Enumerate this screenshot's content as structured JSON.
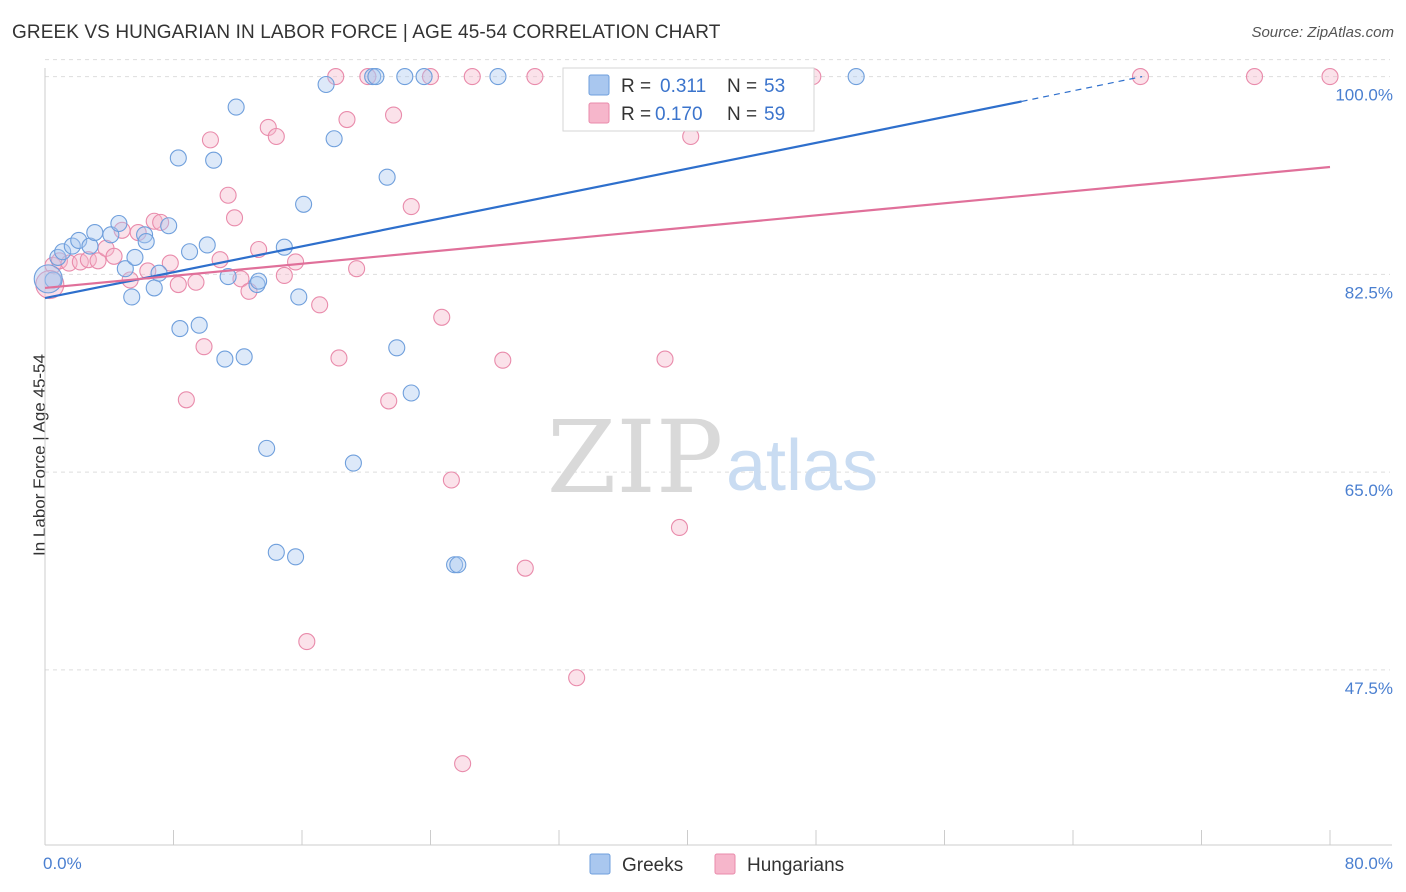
{
  "header": {
    "title": "GREEK VS HUNGARIAN IN LABOR FORCE | AGE 45-54 CORRELATION CHART",
    "source": "Source: ZipAtlas.com"
  },
  "watermark": {
    "zip": "ZIP",
    "atlas": "atlas"
  },
  "colors": {
    "greeks_fill": "#a9c7ef",
    "greeks_stroke": "#6f9fdc",
    "greeks_line": "#2e6fcc",
    "hungarians_fill": "#f6b6cb",
    "hungarians_stroke": "#e98bab",
    "hungarians_line": "#e0709a",
    "axis_text": "#4a7fd0",
    "grid": "#dddddd"
  },
  "chart_data": {
    "type": "scatter",
    "title": "GREEK VS HUNGARIAN IN LABOR FORCE | AGE 45-54 CORRELATION CHART",
    "xlabel": "",
    "ylabel": "In Labor Force | Age 45-54",
    "xlim": [
      0,
      80
    ],
    "ylim": [
      32,
      102
    ],
    "x_tick_labels": [
      "0.0%",
      "80.0%"
    ],
    "y_ticks": [
      47.5,
      65.0,
      82.5,
      100.0
    ],
    "y_tick_labels": [
      "47.5%",
      "65.0%",
      "82.5%",
      "100.0%"
    ],
    "grid": true,
    "legend_position": "top-center",
    "bottom_legend": [
      "Greeks",
      "Hungarians"
    ],
    "stats_legend": [
      {
        "r_label": "R =",
        "r_value": "0.311",
        "n_label": "N =",
        "n_value": "53"
      },
      {
        "r_label": "R =",
        "r_value": "0.170",
        "n_label": "N =",
        "n_value": "59"
      }
    ],
    "series": [
      {
        "name": "Greeks",
        "r": 0.311,
        "n": 53,
        "trend": {
          "x0": 0,
          "y0": 80.4,
          "x1": 60.8,
          "y1": 97.8,
          "dash_x1": 68.3,
          "dash_y1": 100.0
        },
        "points": [
          [
            0.5,
            82.0
          ],
          [
            0.8,
            84.0
          ],
          [
            1.1,
            84.5
          ],
          [
            1.7,
            85.0
          ],
          [
            2.1,
            85.5
          ],
          [
            2.8,
            85.0
          ],
          [
            3.1,
            86.2
          ],
          [
            4.1,
            86.0
          ],
          [
            4.6,
            87.0
          ],
          [
            5.0,
            83.0
          ],
          [
            5.4,
            80.5
          ],
          [
            5.6,
            84.0
          ],
          [
            6.2,
            86.0
          ],
          [
            6.3,
            85.4
          ],
          [
            6.8,
            81.3
          ],
          [
            7.1,
            82.6
          ],
          [
            7.7,
            86.8
          ],
          [
            8.3,
            92.8
          ],
          [
            8.4,
            77.7
          ],
          [
            9.0,
            84.5
          ],
          [
            9.6,
            78.0
          ],
          [
            10.1,
            85.1
          ],
          [
            10.5,
            92.6
          ],
          [
            11.2,
            75.0
          ],
          [
            11.4,
            82.3
          ],
          [
            11.9,
            97.3
          ],
          [
            12.4,
            75.2
          ],
          [
            13.2,
            81.6
          ],
          [
            13.3,
            81.9
          ],
          [
            13.8,
            67.1
          ],
          [
            14.4,
            57.9
          ],
          [
            14.9,
            84.9
          ],
          [
            15.6,
            57.5
          ],
          [
            15.8,
            80.5
          ],
          [
            16.1,
            88.7
          ],
          [
            17.5,
            99.3
          ],
          [
            18.0,
            94.5
          ],
          [
            19.2,
            65.8
          ],
          [
            20.4,
            100.0
          ],
          [
            20.6,
            100.0
          ],
          [
            21.3,
            91.1
          ],
          [
            21.9,
            76.0
          ],
          [
            22.4,
            100.0
          ],
          [
            22.8,
            72.0
          ],
          [
            23.6,
            100.0
          ],
          [
            25.5,
            56.8
          ],
          [
            25.7,
            56.8
          ],
          [
            28.2,
            100.0
          ],
          [
            33.0,
            100.0
          ],
          [
            38.7,
            100.0
          ],
          [
            44.5,
            100.0
          ],
          [
            50.5,
            100.0
          ],
          [
            0.2,
            82.1
          ]
        ]
      },
      {
        "name": "Hungarians",
        "r": 0.17,
        "n": 59,
        "trend": {
          "x0": 0,
          "y0": 81.3,
          "x1": 80,
          "y1": 92.0
        },
        "points": [
          [
            0.5,
            83.3
          ],
          [
            0.9,
            83.7
          ],
          [
            1.5,
            83.5
          ],
          [
            2.2,
            83.6
          ],
          [
            2.7,
            83.8
          ],
          [
            3.3,
            83.7
          ],
          [
            3.8,
            84.8
          ],
          [
            4.3,
            84.1
          ],
          [
            4.8,
            86.4
          ],
          [
            5.3,
            82.0
          ],
          [
            5.8,
            86.2
          ],
          [
            6.4,
            82.8
          ],
          [
            6.8,
            87.2
          ],
          [
            7.2,
            87.1
          ],
          [
            7.8,
            83.5
          ],
          [
            8.3,
            81.6
          ],
          [
            8.8,
            71.4
          ],
          [
            9.4,
            81.8
          ],
          [
            9.9,
            76.1
          ],
          [
            10.3,
            94.4
          ],
          [
            10.9,
            83.8
          ],
          [
            11.4,
            89.5
          ],
          [
            11.8,
            87.5
          ],
          [
            12.2,
            82.1
          ],
          [
            12.7,
            81.0
          ],
          [
            13.3,
            84.7
          ],
          [
            13.9,
            95.5
          ],
          [
            14.4,
            94.7
          ],
          [
            14.9,
            82.4
          ],
          [
            15.6,
            83.6
          ],
          [
            16.3,
            50.0
          ],
          [
            17.1,
            79.8
          ],
          [
            18.1,
            100.0
          ],
          [
            18.3,
            75.1
          ],
          [
            18.8,
            96.2
          ],
          [
            19.4,
            83.0
          ],
          [
            20.1,
            100.0
          ],
          [
            21.4,
            71.3
          ],
          [
            21.7,
            96.6
          ],
          [
            22.8,
            88.5
          ],
          [
            24.0,
            100.0
          ],
          [
            24.7,
            78.7
          ],
          [
            25.3,
            64.3
          ],
          [
            26.0,
            39.2
          ],
          [
            26.6,
            100.0
          ],
          [
            28.5,
            74.9
          ],
          [
            29.9,
            56.5
          ],
          [
            30.5,
            100.0
          ],
          [
            33.1,
            46.8
          ],
          [
            34.5,
            100.0
          ],
          [
            38.6,
            75.0
          ],
          [
            39.5,
            60.1
          ],
          [
            40.2,
            94.7
          ],
          [
            41.3,
            100.0
          ],
          [
            47.8,
            100.0
          ],
          [
            68.2,
            100.0
          ],
          [
            75.3,
            100.0
          ],
          [
            80.0,
            100.0
          ],
          [
            0.3,
            81.6
          ]
        ]
      }
    ]
  }
}
